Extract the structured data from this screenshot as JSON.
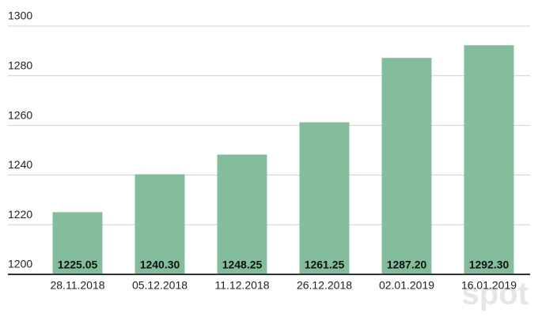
{
  "chart_data": {
    "type": "bar",
    "categories": [
      "28.11.2018",
      "05.12.2018",
      "11.12.2018",
      "26.12.2018",
      "02.01.2019",
      "16.01.2019"
    ],
    "values": [
      1225.05,
      1240.3,
      1248.25,
      1261.25,
      1287.2,
      1292.3
    ],
    "value_labels": [
      "1225.05",
      "1240.30",
      "1248.25",
      "1261.25",
      "1287.20",
      "1292.30"
    ],
    "color": "#84bd9b",
    "ylim": [
      1200,
      1300
    ],
    "yticks": [
      1200,
      1220,
      1240,
      1260,
      1280,
      1300
    ],
    "grid": true,
    "watermark": "spot"
  }
}
